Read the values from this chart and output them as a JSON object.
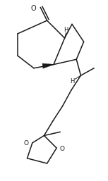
{
  "bg_color": "#ffffff",
  "line_color": "#1a1a1a",
  "line_width": 1.1,
  "font_size": 6.0,
  "fig_width": 1.53,
  "fig_height": 2.57,
  "dpi": 100,
  "xlim": [
    5,
    148
  ],
  "ylim": [
    5,
    252
  ]
}
